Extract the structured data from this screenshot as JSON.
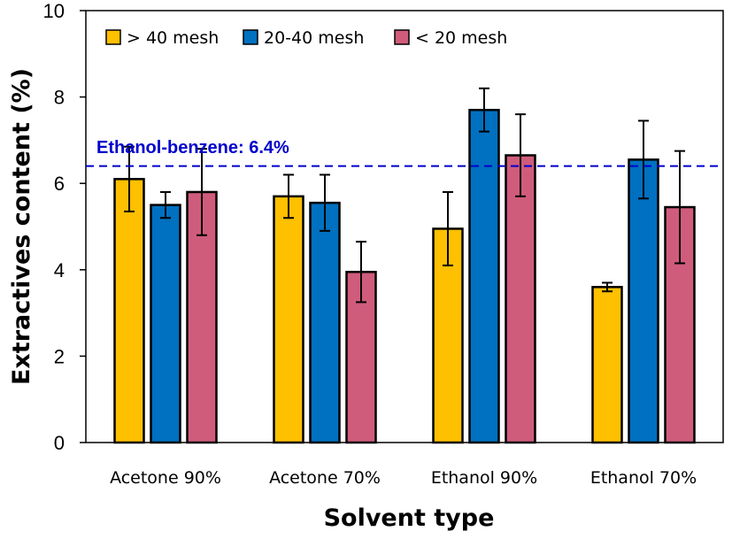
{
  "chart_data": {
    "type": "bar",
    "title": "",
    "xlabel": "Solvent type",
    "ylabel": "Extractives content (%)",
    "ylim": [
      0,
      10
    ],
    "yticks": [
      0,
      2,
      4,
      6,
      8,
      10
    ],
    "categories": [
      "Acetone 90%",
      "Acetone 70%",
      "Ethanol 90%",
      "Ethanol 70%"
    ],
    "series": [
      {
        "name": "> 40 mesh",
        "color": "#FFC000",
        "values": [
          6.1,
          5.7,
          4.95,
          3.6
        ],
        "errors": [
          0.75,
          0.5,
          0.85,
          0.1
        ]
      },
      {
        "name": "20-40 mesh",
        "color": "#0070C0",
        "values": [
          5.5,
          5.55,
          7.7,
          6.55
        ],
        "errors": [
          0.3,
          0.65,
          0.5,
          0.9
        ]
      },
      {
        "name": "< 20 mesh",
        "color": "#D05C7C",
        "values": [
          5.8,
          3.95,
          6.65,
          5.45
        ],
        "errors": [
          1.0,
          0.7,
          0.95,
          1.3
        ]
      }
    ],
    "reference_line": {
      "value": 6.4,
      "label": "Ethanol-benzene: 6.4%",
      "color": "#0000CC",
      "style": "dashed"
    },
    "legend_position": "top-left",
    "grid": false
  }
}
